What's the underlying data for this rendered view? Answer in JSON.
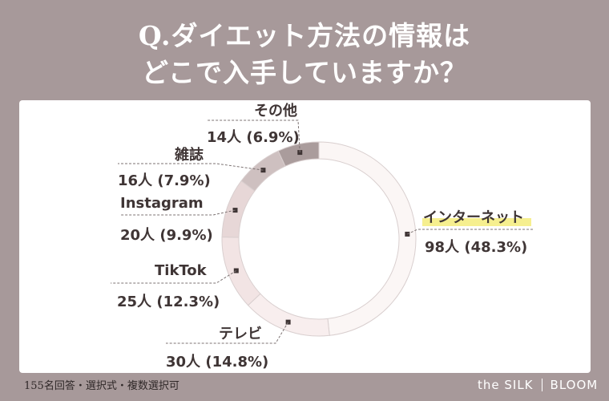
{
  "title": {
    "line1": "Q.ダイエット方法の情報は",
    "line2": "どこで入手していますか？"
  },
  "chart_data": {
    "type": "pie",
    "subtype": "donut",
    "categories": [
      "インターネット",
      "テレビ",
      "TikTok",
      "Instagram",
      "雑誌",
      "その他"
    ],
    "counts": [
      98,
      30,
      25,
      20,
      16,
      14
    ],
    "values": [
      48.3,
      14.8,
      12.3,
      9.9,
      7.9,
      6.9
    ],
    "count_labels": [
      "98人",
      "30人",
      "25人",
      "20人",
      "16人",
      "14人"
    ],
    "percent_labels": [
      "(48.3%)",
      "(14.8%)",
      "(12.3%)",
      "(9.9%)",
      "(7.9%)",
      "(6.9%)"
    ],
    "colors": [
      "#fbf6f5",
      "#f8eeee",
      "#f2e4e4",
      "#e7d7d7",
      "#cec0c0",
      "#aa9c9c"
    ]
  },
  "footer": {
    "note": "155名回答・選択式・複数選択可",
    "brand_left": "the SILK",
    "brand_right": "BLOOM"
  }
}
